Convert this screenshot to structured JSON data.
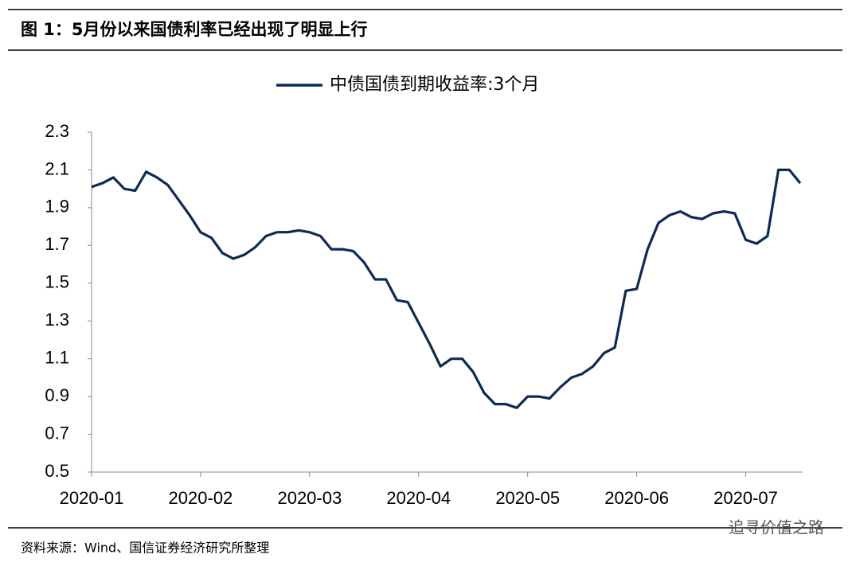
{
  "header": {
    "title": "图 1：5月份以来国债利率已经出现了明显上行"
  },
  "chart_data": {
    "type": "line",
    "categories": [
      "2020-01",
      null,
      null,
      null,
      null,
      null,
      null,
      null,
      null,
      null,
      "2020-02",
      null,
      null,
      null,
      null,
      null,
      null,
      null,
      null,
      null,
      "2020-03",
      null,
      null,
      null,
      null,
      null,
      null,
      null,
      null,
      null,
      "2020-04",
      null,
      null,
      null,
      null,
      null,
      null,
      null,
      null,
      null,
      "2020-05",
      null,
      null,
      null,
      null,
      null,
      null,
      null,
      null,
      null,
      "2020-06",
      null,
      null,
      null,
      null,
      null,
      null,
      null,
      null,
      null,
      "2020-07",
      null,
      null,
      null,
      null,
      null
    ],
    "series": [
      {
        "name": "中债国债到期收益率:3个月",
        "color": "#0d2b52",
        "values": [
          2.01,
          2.03,
          2.06,
          2.0,
          1.99,
          2.09,
          2.06,
          2.02,
          1.94,
          1.86,
          1.77,
          1.74,
          1.66,
          1.63,
          1.65,
          1.69,
          1.75,
          1.77,
          1.77,
          1.78,
          1.77,
          1.75,
          1.68,
          1.68,
          1.67,
          1.61,
          1.52,
          1.52,
          1.41,
          1.4,
          1.29,
          1.18,
          1.06,
          1.1,
          1.1,
          1.03,
          0.92,
          0.86,
          0.86,
          0.84,
          0.9,
          0.9,
          0.89,
          0.95,
          1.0,
          1.02,
          1.06,
          1.13,
          1.16,
          1.46,
          1.47,
          1.68,
          1.82,
          1.86,
          1.88,
          1.85,
          1.84,
          1.87,
          1.88,
          1.87,
          1.73,
          1.71,
          1.75,
          2.1,
          2.1,
          2.03
        ]
      }
    ],
    "ylim": [
      0.5,
      2.3
    ],
    "yticks": [
      0.5,
      0.7,
      0.9,
      1.1,
      1.3,
      1.5,
      1.7,
      1.9,
      2.1,
      2.3
    ],
    "grid": false,
    "legend": "top"
  },
  "footer": {
    "source": "资料来源：Wind、国信证券经济研究所整理",
    "watermark": "追寻价值之路"
  }
}
